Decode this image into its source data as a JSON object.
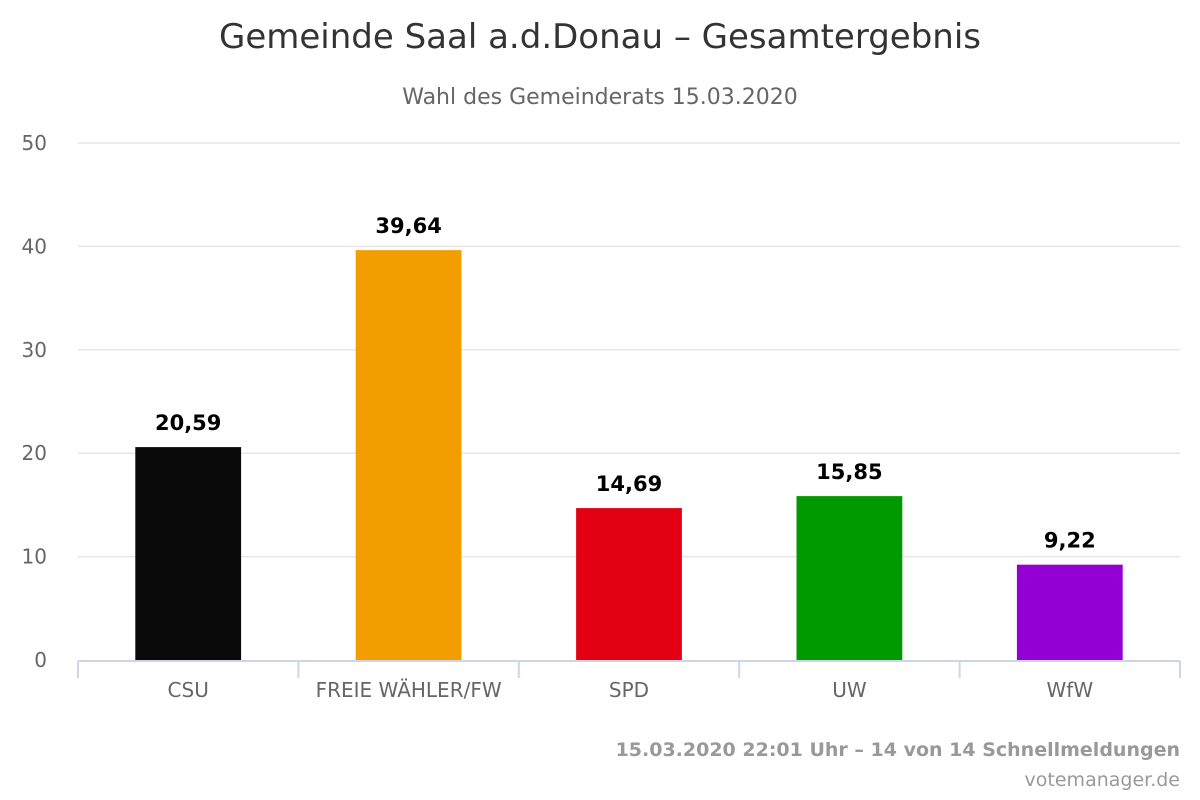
{
  "chart_data": {
    "type": "bar",
    "title": "Gemeinde Saal a.d.Donau – Gesamtergebnis",
    "subtitle": "Wahl des Gemeinderats 15.03.2020",
    "categories": [
      "CSU",
      "FREIE WÄHLER/FW",
      "SPD",
      "UW",
      "WfW"
    ],
    "values": [
      20.59,
      39.64,
      14.69,
      15.85,
      9.22
    ],
    "data_labels": [
      "20,59",
      "39,64",
      "14,69",
      "15,85",
      "9,22"
    ],
    "colors": [
      "#0a0a0a",
      "#f29d00",
      "#e30012",
      "#009a00",
      "#9400d3"
    ],
    "ylim": [
      0,
      50
    ],
    "yticks": [
      0,
      10,
      20,
      30,
      40,
      50
    ],
    "grid": true,
    "legend": "none"
  },
  "credits": {
    "line1": "15.03.2020 22:01 Uhr – 14 von 14 Schnellmeldungen",
    "line2": "votemanager.de"
  }
}
